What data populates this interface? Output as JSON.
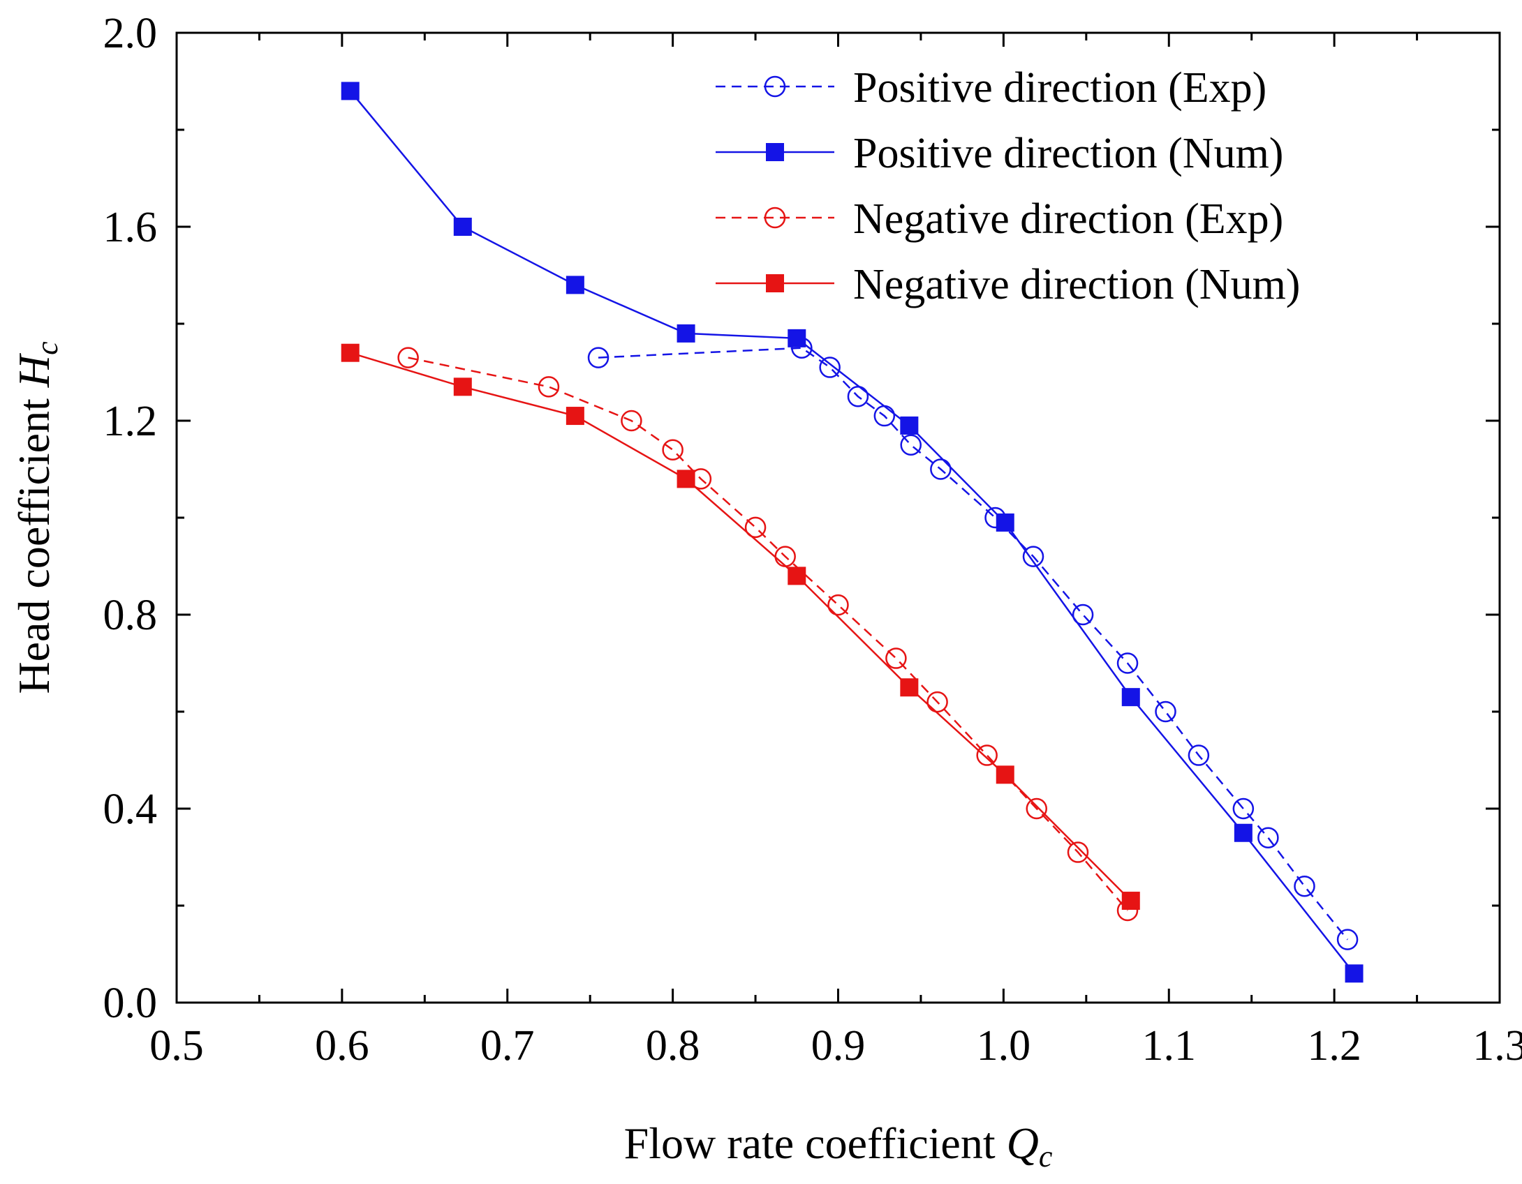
{
  "chart_data": {
    "type": "line",
    "title": "",
    "xlabel": "Flow rate coefficient ",
    "xlabel_symbol": "Q",
    "xlabel_sub": "c",
    "ylabel": "Head coefficient ",
    "ylabel_symbol": "H",
    "ylabel_sub": "c",
    "xlim": [
      0.5,
      1.3
    ],
    "ylim": [
      0.0,
      2.0
    ],
    "xticks": [
      {
        "value": 0.5,
        "label": "0.5"
      },
      {
        "value": 0.6,
        "label": "0.6"
      },
      {
        "value": 0.7,
        "label": "0.7"
      },
      {
        "value": 0.8,
        "label": "0.8"
      },
      {
        "value": 0.9,
        "label": "0.9"
      },
      {
        "value": 1.0,
        "label": "1.0"
      },
      {
        "value": 1.1,
        "label": "1.1"
      },
      {
        "value": 1.2,
        "label": "1.2"
      },
      {
        "value": 1.3,
        "label": "1.3"
      }
    ],
    "xminor": [
      0.55,
      0.65,
      0.75,
      0.85,
      0.95,
      1.05,
      1.15,
      1.25
    ],
    "yticks": [
      {
        "value": 0.0,
        "label": "0.0"
      },
      {
        "value": 0.4,
        "label": "0.4"
      },
      {
        "value": 0.8,
        "label": "0.8"
      },
      {
        "value": 1.2,
        "label": "1.2"
      },
      {
        "value": 1.6,
        "label": "1.6"
      },
      {
        "value": 2.0,
        "label": "2.0"
      }
    ],
    "yminor": [
      0.2,
      0.6,
      1.0,
      1.4,
      1.8
    ],
    "grid": false,
    "legend_position": "top-right",
    "series": [
      {
        "name": "Positive direction (Exp)",
        "color": "#1414e6",
        "line": "dashed",
        "marker": "open-circle",
        "x": [
          0.755,
          0.878,
          0.895,
          0.912,
          0.928,
          0.944,
          0.962,
          0.995,
          1.018,
          1.048,
          1.075,
          1.098,
          1.118,
          1.145,
          1.16,
          1.182,
          1.208
        ],
        "y": [
          1.33,
          1.35,
          1.31,
          1.25,
          1.21,
          1.15,
          1.1,
          1.0,
          0.92,
          0.8,
          0.7,
          0.6,
          0.51,
          0.4,
          0.34,
          0.24,
          0.13
        ]
      },
      {
        "name": "Positive direction (Num)",
        "color": "#1414e6",
        "line": "solid",
        "marker": "filled-square",
        "x": [
          0.605,
          0.673,
          0.741,
          0.808,
          0.875,
          0.943,
          1.001,
          1.077,
          1.145,
          1.212
        ],
        "y": [
          1.88,
          1.6,
          1.48,
          1.38,
          1.37,
          1.19,
          0.99,
          0.63,
          0.35,
          0.06
        ]
      },
      {
        "name": "Negative direction (Exp)",
        "color": "#e61414",
        "line": "dashed",
        "marker": "open-circle",
        "x": [
          0.64,
          0.725,
          0.775,
          0.8,
          0.817,
          0.85,
          0.868,
          0.9,
          0.935,
          0.96,
          0.99,
          1.02,
          1.045,
          1.075
        ],
        "y": [
          1.33,
          1.27,
          1.2,
          1.14,
          1.08,
          0.98,
          0.92,
          0.82,
          0.71,
          0.62,
          0.51,
          0.4,
          0.31,
          0.19
        ]
      },
      {
        "name": "Negative direction (Num)",
        "color": "#e61414",
        "line": "solid",
        "marker": "filled-square",
        "x": [
          0.605,
          0.673,
          0.741,
          0.808,
          0.875,
          0.943,
          1.001,
          1.077
        ],
        "y": [
          1.34,
          1.27,
          1.21,
          1.08,
          0.88,
          0.65,
          0.47,
          0.21
        ]
      }
    ]
  }
}
